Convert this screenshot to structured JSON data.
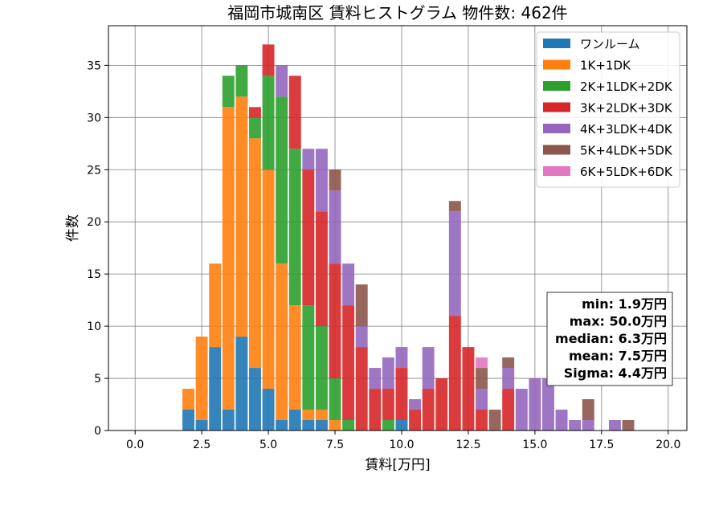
{
  "chart_data": {
    "type": "bar",
    "stacked": true,
    "title": "福岡市城南区 賃料ヒストグラム 物件数: 462件",
    "xlabel": "賃料[万円]",
    "ylabel": "件数",
    "xlim": [
      -1.0,
      20.7
    ],
    "ylim": [
      0,
      38.8
    ],
    "xticks": [
      0.0,
      2.5,
      5.0,
      7.5,
      10.0,
      12.5,
      15.0,
      17.5,
      20.0
    ],
    "xtick_labels": [
      "0.0",
      "2.5",
      "5.0",
      "7.5",
      "10.0",
      "12.5",
      "15.0",
      "17.5",
      "20.0"
    ],
    "yticks": [
      0,
      5,
      10,
      15,
      20,
      25,
      30,
      35
    ],
    "ytick_labels": [
      "0",
      "5",
      "10",
      "15",
      "20",
      "25",
      "30",
      "35"
    ],
    "grid": true,
    "legend_position": "top-right",
    "bin_width": 0.5,
    "x": [
      2.0,
      2.5,
      3.0,
      3.5,
      4.0,
      4.5,
      5.0,
      5.5,
      6.0,
      6.5,
      7.0,
      7.5,
      8.0,
      8.5,
      9.0,
      9.5,
      10.0,
      10.5,
      11.0,
      11.5,
      12.0,
      12.5,
      13.0,
      13.5,
      14.0,
      14.5,
      15.0,
      15.5,
      16.0,
      16.5,
      17.0,
      17.5,
      18.0,
      18.5
    ],
    "series": [
      {
        "name": "ワンルーム",
        "color": "#1f77b4",
        "values": [
          2,
          1,
          8,
          2,
          9,
          6,
          4,
          1,
          2,
          1,
          1,
          0,
          0,
          0,
          0,
          0,
          1,
          0,
          0,
          0,
          0,
          0,
          0,
          0,
          0,
          0,
          0,
          0,
          0,
          0,
          0,
          0,
          0,
          0
        ]
      },
      {
        "name": "1K+1DK",
        "color": "#ff7f0e",
        "values": [
          2,
          8,
          8,
          29,
          23,
          22,
          21,
          15,
          10,
          1,
          1,
          1,
          0,
          0,
          0,
          0,
          0,
          0,
          0,
          0,
          0,
          0,
          0,
          0,
          0,
          0,
          0,
          0,
          0,
          0,
          0,
          0,
          0,
          0
        ]
      },
      {
        "name": "2K+1LDK+2DK",
        "color": "#2ca02c",
        "values": [
          0,
          0,
          0,
          3,
          3,
          2,
          9,
          16,
          15,
          10,
          8,
          4,
          1,
          0,
          0,
          1,
          0,
          0,
          0,
          0,
          0,
          0,
          0,
          0,
          0,
          0,
          0,
          0,
          0,
          0,
          0,
          0,
          0,
          0
        ]
      },
      {
        "name": "3K+2LDK+3DK",
        "color": "#d62728",
        "values": [
          0,
          0,
          0,
          0,
          0,
          1,
          3,
          0,
          7,
          13,
          11,
          11,
          11,
          8,
          4,
          3,
          5,
          2,
          4,
          5,
          11,
          8,
          2,
          0,
          4,
          0,
          0,
          0,
          0,
          0,
          0,
          0,
          0,
          0
        ]
      },
      {
        "name": "4K+3LDK+4DK",
        "color": "#9467bd",
        "values": [
          0,
          0,
          0,
          0,
          0,
          0,
          0,
          3,
          0,
          2,
          6,
          7,
          4,
          2,
          2,
          3,
          2,
          1,
          4,
          0,
          10,
          0,
          2,
          0,
          2,
          4,
          5,
          5,
          2,
          1,
          1,
          0,
          1,
          0
        ]
      },
      {
        "name": "5K+4LDK+5DK",
        "color": "#8c564b",
        "values": [
          0,
          0,
          0,
          0,
          0,
          0,
          0,
          0,
          0,
          0,
          0,
          2,
          0,
          4,
          0,
          0,
          0,
          0,
          0,
          0,
          1,
          0,
          2,
          2,
          1,
          0,
          0,
          0,
          0,
          0,
          2,
          0,
          0,
          1
        ]
      },
      {
        "name": "6K+5LDK+6DK",
        "color": "#e377c2",
        "values": [
          0,
          0,
          0,
          0,
          0,
          0,
          0,
          0,
          0,
          0,
          0,
          0,
          0,
          0,
          0,
          0,
          0,
          0,
          0,
          0,
          0,
          0,
          1,
          0,
          0,
          0,
          0,
          0,
          0,
          0,
          0,
          0,
          0,
          0
        ]
      }
    ],
    "stats_box": [
      "min: 1.9万円",
      "max: 50.0万円",
      "median: 6.3万円",
      "mean: 7.5万円",
      "Sigma: 4.4万円"
    ]
  }
}
